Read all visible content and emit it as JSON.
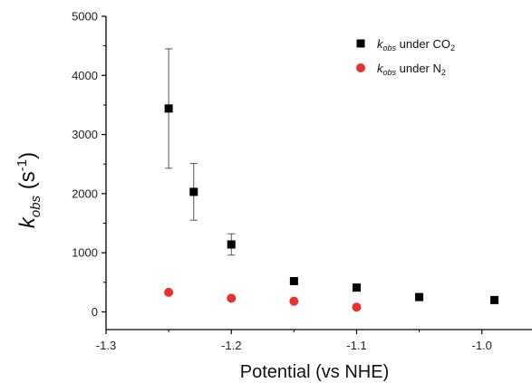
{
  "chart_data": {
    "type": "scatter",
    "title": "",
    "xlabel": "Potential (vs NHE)",
    "ylabel": {
      "base": "k",
      "sub": "obs",
      "unit_open": " (s",
      "unit_sup": "-1",
      "unit_close": ")"
    },
    "xlim": [
      -1.3,
      -0.96
    ],
    "ylim": [
      -300,
      5000
    ],
    "xticks": [
      -1.3,
      -1.2,
      -1.1,
      -1.0
    ],
    "xtick_labels": [
      "-1.3",
      "-1.2",
      "-1.1",
      "-1.0"
    ],
    "yticks": [
      0,
      1000,
      2000,
      3000,
      4000,
      5000
    ],
    "ytick_labels": [
      "0",
      "1000",
      "2000",
      "3000",
      "4000",
      "5000"
    ],
    "grid": false,
    "legend_position": "top-right",
    "series": [
      {
        "name": {
          "base": "k",
          "sub": "obs",
          "suffix": " under CO",
          "suffix_sub": "2"
        },
        "marker": "square",
        "color": "#000000",
        "x": [
          -1.25,
          -1.23,
          -1.2,
          -1.15,
          -1.1,
          -1.05,
          -0.99
        ],
        "y": [
          3440,
          2030,
          1140,
          520,
          410,
          250,
          200
        ],
        "yerr": [
          1010,
          480,
          180,
          null,
          null,
          null,
          null
        ]
      },
      {
        "name": {
          "base": "k",
          "sub": "obs",
          "suffix": " under N",
          "suffix_sub": "2"
        },
        "marker": "circle",
        "color": "#e8312a",
        "x": [
          -1.25,
          -1.2,
          -1.15,
          -1.1
        ],
        "y": [
          330,
          230,
          180,
          80
        ]
      }
    ]
  }
}
